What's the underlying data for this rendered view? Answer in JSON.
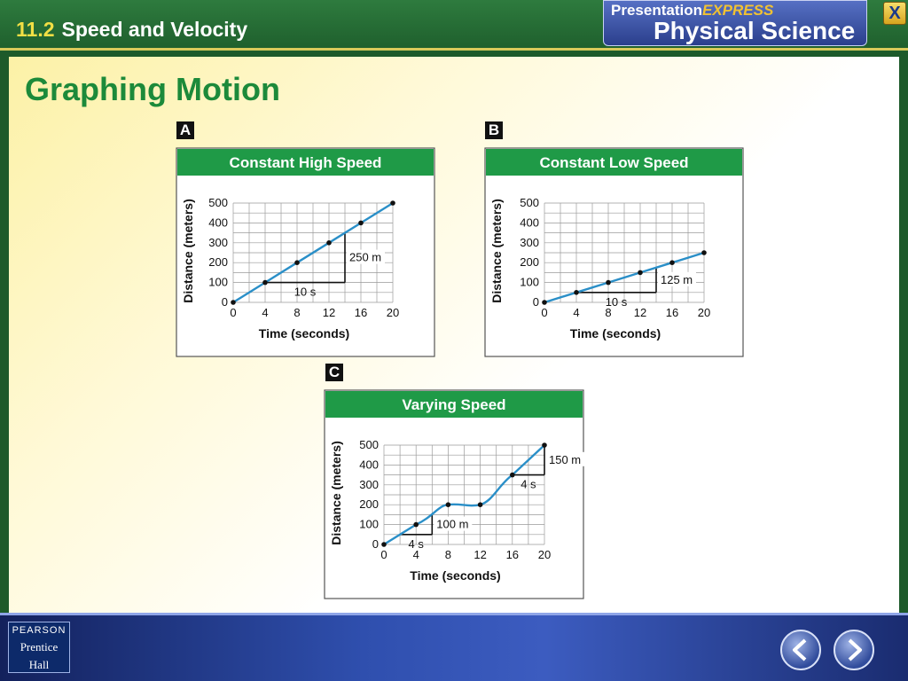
{
  "header": {
    "section_number": "11.2",
    "section_title": "Speed and Velocity"
  },
  "brand": {
    "line1_a": "Presentation",
    "line1_b": "EXPRESS",
    "line2": "Physical Science"
  },
  "close_label": "X",
  "slide": {
    "title": "Graphing Motion"
  },
  "footer": {
    "publisher_line1": "PEARSON",
    "publisher_line2": "Prentice",
    "publisher_line3": "Hall"
  },
  "colors": {
    "line": "#2a8fc8",
    "header_green": "#1f9a47",
    "title_green": "#1c8a3a"
  },
  "chart_data": [
    {
      "type": "line",
      "badge": "A",
      "title": "Constant High Speed",
      "xlabel": "Time (seconds)",
      "ylabel": "Distance (meters)",
      "x_ticks": [
        "0",
        "4",
        "8",
        "12",
        "16",
        "20"
      ],
      "y_ticks": [
        "0",
        "100",
        "200",
        "300",
        "400",
        "500"
      ],
      "xlim": [
        0,
        20
      ],
      "ylim": [
        0,
        500
      ],
      "grid": true,
      "x": [
        0,
        4,
        8,
        12,
        16,
        20
      ],
      "y": [
        0,
        100,
        200,
        300,
        400,
        500
      ],
      "annotations": [
        {
          "type": "run",
          "text": "10 s",
          "x0": 4,
          "x1": 14,
          "y": 100
        },
        {
          "type": "rise",
          "text": "250 m",
          "x": 14,
          "y0": 100,
          "y1": 350
        }
      ]
    },
    {
      "type": "line",
      "badge": "B",
      "title": "Constant Low Speed",
      "xlabel": "Time (seconds)",
      "ylabel": "Distance (meters)",
      "x_ticks": [
        "0",
        "4",
        "8",
        "12",
        "16",
        "20"
      ],
      "y_ticks": [
        "0",
        "100",
        "200",
        "300",
        "400",
        "500"
      ],
      "xlim": [
        0,
        20
      ],
      "ylim": [
        0,
        500
      ],
      "grid": true,
      "x": [
        0,
        4,
        8,
        12,
        16,
        20
      ],
      "y": [
        0,
        50,
        100,
        150,
        200,
        250
      ],
      "annotations": [
        {
          "type": "run",
          "text": "10 s",
          "x0": 4,
          "x1": 14,
          "y": 50
        },
        {
          "type": "rise",
          "text": "125 m",
          "x": 14,
          "y0": 50,
          "y1": 175
        }
      ]
    },
    {
      "type": "line",
      "badge": "C",
      "title": "Varying Speed",
      "xlabel": "Time (seconds)",
      "ylabel": "Distance (meters)",
      "x_ticks": [
        "0",
        "4",
        "8",
        "12",
        "16",
        "20"
      ],
      "y_ticks": [
        "0",
        "100",
        "200",
        "300",
        "400",
        "500"
      ],
      "xlim": [
        0,
        20
      ],
      "ylim": [
        0,
        500
      ],
      "grid": true,
      "x": [
        0,
        4,
        8,
        12,
        16,
        20
      ],
      "y": [
        0,
        100,
        200,
        200,
        350,
        500
      ],
      "annotations": [
        {
          "type": "run",
          "text": "4 s",
          "x0": 2,
          "x1": 6,
          "y": 50
        },
        {
          "type": "rise",
          "text": "100 m",
          "x": 6,
          "y0": 50,
          "y1": 150
        },
        {
          "type": "run",
          "text": "4 s",
          "x0": 16,
          "x1": 20,
          "y": 350
        },
        {
          "type": "rise",
          "text": "150 m",
          "x": 20,
          "y0": 350,
          "y1": 500
        }
      ]
    }
  ]
}
